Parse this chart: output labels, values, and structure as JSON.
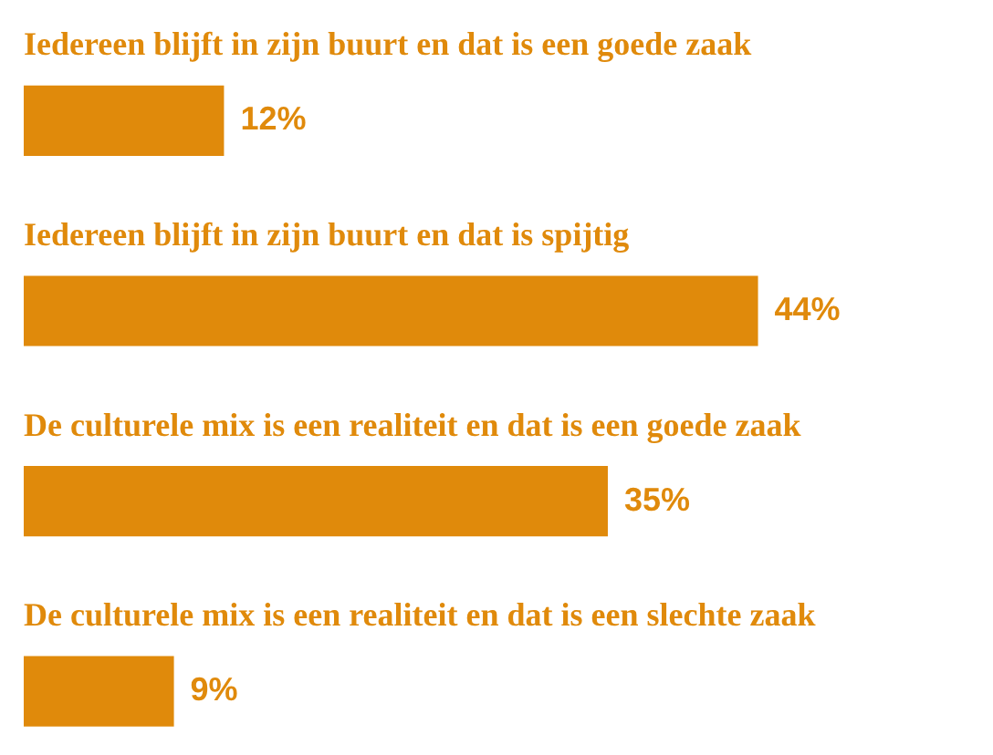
{
  "chart_data": {
    "type": "bar",
    "orientation": "horizontal",
    "color": "#e08a0b",
    "categories": [
      "Iedereen blijft in zijn buurt en dat is een goede zaak",
      "Iedereen blijft in zijn buurt en dat is spijtig",
      "De culturele mix is een realiteit en dat is een goede zaak",
      "De culturele mix is een realiteit en dat is een slechte zaak"
    ],
    "values": [
      12,
      44,
      35,
      9
    ],
    "value_labels": [
      "12%",
      "44%",
      "35%",
      "9%"
    ]
  }
}
